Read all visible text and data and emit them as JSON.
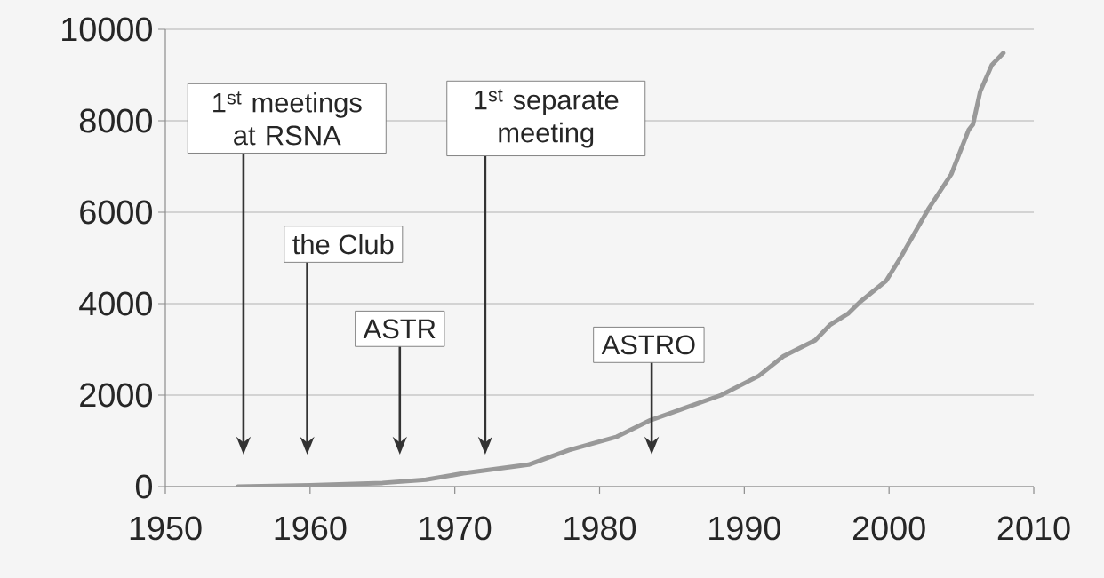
{
  "chart_data": {
    "type": "line",
    "x": [
      1955,
      1960,
      1965,
      1968,
      1970.6,
      1975.1,
      1977.9,
      1981.2,
      1983.5,
      1988.4,
      1991,
      1992.7,
      1994.9,
      1995.9,
      1997.2,
      1998,
      1999.8,
      2000.8,
      2002.7,
      2004.3,
      2005.5,
      2005.8,
      2006.3,
      2007.1,
      2007.9
    ],
    "series": [
      {
        "color": "#999999",
        "values": [
          0,
          30,
          80,
          150,
          290,
          480,
          800,
          1090,
          1450,
          2000,
          2420,
          2850,
          3200,
          3530,
          3790,
          4040,
          4500,
          5010,
          6060,
          6830,
          7800,
          7920,
          8640,
          9220,
          9480
        ]
      }
    ],
    "xlim": [
      1950,
      2010
    ],
    "xticks": [
      1950,
      1960,
      1970,
      1980,
      1990,
      2000,
      2010
    ],
    "ylim": [
      0,
      10000
    ],
    "yticks": [
      0,
      2000,
      4000,
      6000,
      8000,
      10000
    ],
    "grid": "y",
    "marker": "none",
    "line_style": "solid",
    "annotations": [
      "1$^{st}$ meetings at RSNA",
      "the Club",
      "ASTR",
      "1$^{st}$ separate meeting",
      "ASTRO"
    ]
  }
}
